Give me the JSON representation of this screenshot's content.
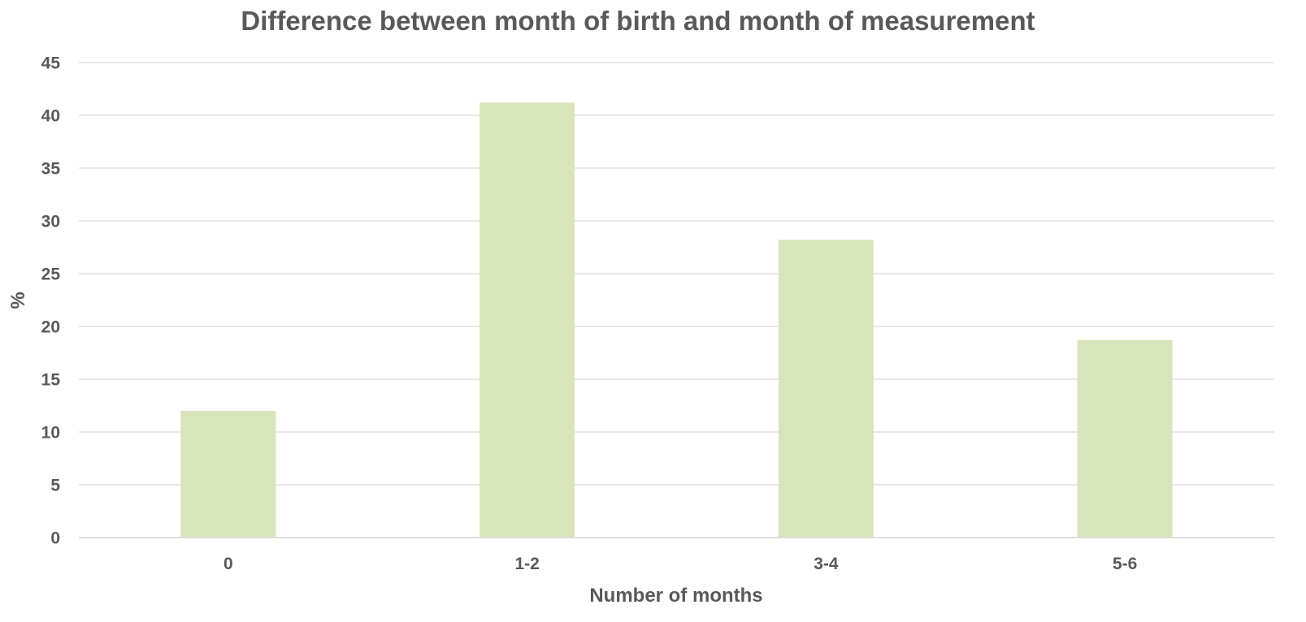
{
  "chart_data": {
    "type": "bar",
    "title": "Difference between month of birth and month of measurement",
    "xlabel": "Number of months",
    "ylabel": "%",
    "categories": [
      "0",
      "1-2",
      "3-4",
      "5-6"
    ],
    "values": [
      12.0,
      41.2,
      28.2,
      18.7
    ],
    "ylim": [
      0,
      45
    ],
    "yticks": [
      "0",
      "5",
      "10",
      "15",
      "20",
      "25",
      "30",
      "35",
      "40",
      "45"
    ],
    "grid": true,
    "legend": "none",
    "colors": {
      "bar": "#d8e4bc",
      "grid": "#d9d9d9",
      "text": "#595959"
    }
  }
}
